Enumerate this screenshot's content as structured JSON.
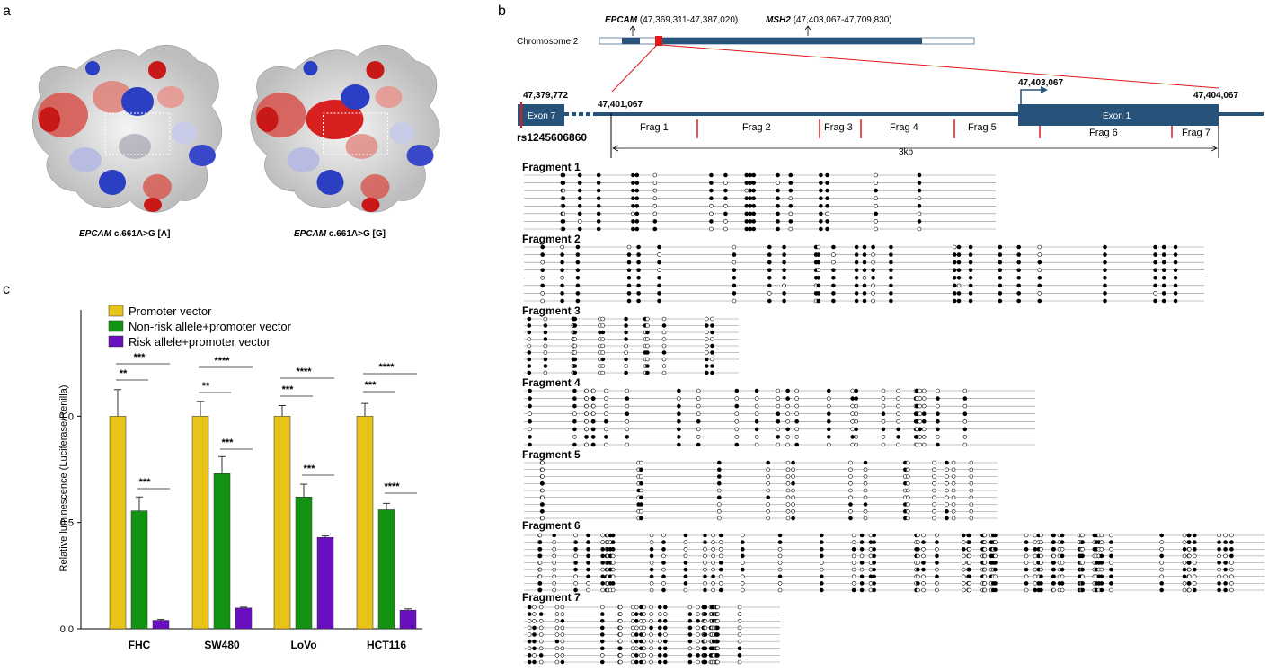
{
  "panels": {
    "a": "a",
    "b": "b",
    "c": "c"
  },
  "panel_a": {
    "captions": [
      {
        "gene": "EPCAM",
        "variant": " c.661A>G [A]"
      },
      {
        "gene": "EPCAM",
        "variant": " c.661A>G [G]"
      }
    ]
  },
  "panel_b": {
    "chromosome_label": "Chromosome 2",
    "epcam": {
      "gene": "EPCAM",
      "coords": " (47,369,311-47,387,020)"
    },
    "msh2": {
      "gene": "MSH2",
      "coords": " (47,403,067-47,709,830)"
    },
    "positions": {
      "p1": "47,379,772",
      "p2": "47,401,067",
      "p3": "47,403,067",
      "p4": "47,404,067"
    },
    "exon7": "Exon 7",
    "exon1": "Exon 1",
    "snp": "rs1245606860",
    "frag_labels": [
      "Frag 1",
      "Frag 2",
      "Frag 3",
      "Frag 4",
      "Frag 5",
      "Frag 6",
      "Frag 7"
    ],
    "span_label": "3kb",
    "fragment_titles": [
      "Fragment 1",
      "Fragment 2",
      "Fragment 3",
      "Fragment 4",
      "Fragment 5",
      "Fragment 6",
      "Fragment 7"
    ]
  },
  "chart_data": {
    "type": "bar",
    "categories": [
      "FHC",
      "SW480",
      "LoVo",
      "HCT116"
    ],
    "series": [
      {
        "name": "Promoter vector",
        "color": "#e8c318",
        "values": [
          1.0,
          1.0,
          1.0,
          1.0
        ],
        "errors": [
          0.125,
          0.07,
          0.05,
          0.06
        ]
      },
      {
        "name": "Non-risk allele+promoter vector",
        "color": "#129412",
        "values": [
          0.555,
          0.73,
          0.62,
          0.56
        ],
        "errors": [
          0.065,
          0.08,
          0.06,
          0.03
        ]
      },
      {
        "name": "Risk allele+promoter vector",
        "color": "#6a0fc0",
        "values": [
          0.04,
          0.098,
          0.43,
          0.088
        ],
        "errors": [
          0.004,
          0.004,
          0.007,
          0.006
        ]
      }
    ],
    "ylabel": "Relative luminescence (Luciferase/Renilla)",
    "ylim": [
      0,
      1.5
    ],
    "yticks": [
      "0.0",
      "0.5",
      "1.0"
    ],
    "significance": [
      {
        "group": "FHC",
        "pairs": [
          {
            "between": [
              "Promoter vector",
              "Risk allele+promoter vector"
            ],
            "label": "***"
          },
          {
            "between": [
              "Promoter vector",
              "Non-risk allele+promoter vector"
            ],
            "label": "**"
          },
          {
            "between": [
              "Non-risk allele+promoter vector",
              "Risk allele+promoter vector"
            ],
            "label": "***"
          }
        ]
      },
      {
        "group": "SW480",
        "pairs": [
          {
            "between": [
              "Promoter vector",
              "Risk allele+promoter vector"
            ],
            "label": "****"
          },
          {
            "between": [
              "Promoter vector",
              "Non-risk allele+promoter vector"
            ],
            "label": "**"
          },
          {
            "between": [
              "Non-risk allele+promoter vector",
              "Risk allele+promoter vector"
            ],
            "label": "***"
          }
        ]
      },
      {
        "group": "LoVo",
        "pairs": [
          {
            "between": [
              "Promoter vector",
              "Risk allele+promoter vector"
            ],
            "label": "****"
          },
          {
            "between": [
              "Promoter vector",
              "Non-risk allele+promoter vector"
            ],
            "label": "***"
          },
          {
            "between": [
              "Non-risk allele+promoter vector",
              "Risk allele+promoter vector"
            ],
            "label": "***"
          }
        ]
      },
      {
        "group": "HCT116",
        "pairs": [
          {
            "between": [
              "Promoter vector",
              "Risk allele+promoter vector"
            ],
            "label": "****"
          },
          {
            "between": [
              "Promoter vector",
              "Non-risk allele+promoter vector"
            ],
            "label": "***"
          },
          {
            "between": [
              "Non-risk allele+promoter vector",
              "Risk allele+promoter vector"
            ],
            "label": "****"
          }
        ]
      }
    ],
    "legend_position": "top-left"
  }
}
